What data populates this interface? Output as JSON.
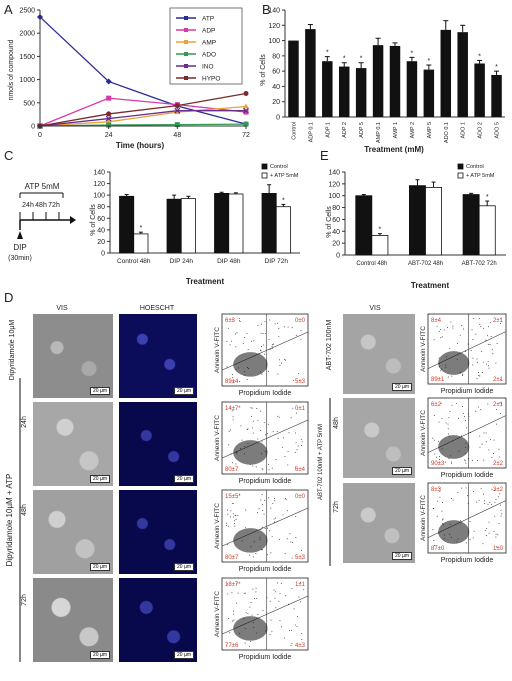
{
  "figure": {
    "panel_letters": [
      "A",
      "B",
      "C",
      "D",
      "E"
    ]
  },
  "chart_data": [
    {
      "id": "A",
      "type": "line",
      "xlabel": "Time (hours)",
      "ylabel": "nmols of compound",
      "x": [
        0,
        24,
        48,
        72
      ],
      "xlim": [
        0,
        72
      ],
      "ylim": [
        0,
        2500
      ],
      "yticks": [
        0,
        500,
        1000,
        1500,
        2000,
        2500
      ],
      "legend_position": "top-right",
      "series": [
        {
          "name": "ATP",
          "color": "#2b2b9a",
          "marker": "diamond",
          "values": [
            2350,
            960,
            430,
            40
          ]
        },
        {
          "name": "ADP",
          "color": "#d63aa9",
          "marker": "square",
          "values": [
            0,
            600,
            460,
            300
          ]
        },
        {
          "name": "AMP",
          "color": "#e8a33a",
          "marker": "triangle",
          "values": [
            0,
            90,
            300,
            420
          ]
        },
        {
          "name": "ADO",
          "color": "#2f9c54",
          "marker": "square",
          "values": [
            0,
            20,
            30,
            40
          ]
        },
        {
          "name": "INO",
          "color": "#6a2b8a",
          "marker": "x",
          "values": [
            0,
            160,
            330,
            330
          ]
        },
        {
          "name": "HYPO",
          "color": "#7a2a2a",
          "marker": "circle",
          "values": [
            0,
            260,
            440,
            700
          ]
        }
      ]
    },
    {
      "id": "B",
      "type": "bar",
      "xlabel": "Treatment (mM)",
      "ylabel": "% of Cells",
      "ylim": [
        0,
        140
      ],
      "yticks": [
        0,
        20,
        40,
        60,
        80,
        100,
        120,
        140
      ],
      "categories": [
        "Control",
        "ADP 0.1",
        "ADP 1",
        "ADP 2",
        "ADP 5",
        "AMP 0.1",
        "AMP 1",
        "AMP 2",
        "AMP 5",
        "ADO 0.1",
        "ADO 1",
        "ADO 2",
        "ADO 5"
      ],
      "values": [
        100,
        115,
        73,
        66,
        64,
        94,
        93,
        73,
        62,
        114,
        111,
        70,
        55
      ],
      "errors": [
        0,
        6,
        6,
        5,
        7,
        9,
        4,
        5,
        6,
        12,
        9,
        4,
        5
      ],
      "significant": [
        false,
        false,
        true,
        true,
        true,
        false,
        false,
        true,
        true,
        false,
        false,
        true,
        true
      ]
    },
    {
      "id": "C",
      "type": "bar",
      "xlabel": "Treatment",
      "ylabel": "% of Cells",
      "ylim": [
        0,
        140
      ],
      "yticks": [
        0,
        20,
        40,
        60,
        80,
        100,
        120,
        140
      ],
      "legend_position": "top-right",
      "categories": [
        "Control 48h",
        "DIP 24h",
        "DIP 48h",
        "DIP 72h"
      ],
      "series": [
        {
          "name": "Control",
          "values": [
            98,
            93,
            103,
            103
          ],
          "errors": [
            3,
            7,
            2,
            15
          ]
        },
        {
          "name": "+ ATP 5mM",
          "values": [
            33,
            94,
            102,
            80
          ],
          "errors": [
            3,
            4,
            2,
            4
          ]
        }
      ],
      "significant": [
        true,
        false,
        false,
        true
      ]
    },
    {
      "id": "E",
      "type": "bar",
      "xlabel": "Treatment",
      "ylabel": "% of Cells",
      "ylim": [
        0,
        140
      ],
      "yticks": [
        0,
        20,
        40,
        60,
        80,
        100,
        120,
        140
      ],
      "legend_position": "top-right",
      "categories": [
        "Control 48h",
        "ABT-702 48h",
        "ABT-702 72h"
      ],
      "series": [
        {
          "name": "Control",
          "values": [
            100,
            117,
            102
          ],
          "errors": [
            2,
            10,
            2
          ]
        },
        {
          "name": "+ ATP 5mM",
          "values": [
            33,
            114,
            83
          ],
          "errors": [
            3,
            9,
            8
          ]
        }
      ],
      "significant": [
        true,
        false,
        true
      ]
    }
  ],
  "schematic": {
    "dose_label": "ATP 5mM",
    "timepoints": [
      "24h",
      "48h",
      "72h"
    ],
    "drug_label": "DIP",
    "drug_time": "(30min)"
  },
  "panel_d": {
    "col_vis": "VIS",
    "col_hoescht": "HOESCHT",
    "col_vis_right": "VIS",
    "scale_bar": "20 µm",
    "top_label": "Dipyridamole 10µM",
    "group_label": "Dipyridamole 10µM + ATP",
    "right_top_label": "ABT-702 100nM",
    "right_group_label": "ABT-702 100nM + ATP 5mM",
    "flow_xlabel": "Propidium Iodide",
    "flow_ylabel": "Annexin V-FITC",
    "rows": [
      {
        "time": "",
        "q": [
          "6±3",
          "0±0",
          "89±4",
          "5±3"
        ]
      },
      {
        "time": "24h",
        "q": [
          "14±7*",
          "0±1",
          "80±7",
          "6±4"
        ]
      },
      {
        "time": "48h",
        "q": [
          "15±5*",
          "0±0",
          "80±7",
          "5±3"
        ]
      },
      {
        "time": "72h",
        "q": [
          "18±7*",
          "1±1",
          "77±6",
          "4±3"
        ]
      }
    ],
    "right_rows": [
      {
        "time": "",
        "q": [
          "8±4",
          "2±1",
          "89±1",
          "2±1"
        ]
      },
      {
        "time": "48h",
        "q": [
          "6±2",
          "2±1",
          "90±3",
          "2±2"
        ]
      },
      {
        "time": "72h",
        "q": [
          "8±3",
          "3±2",
          "87±0",
          "1±0"
        ]
      }
    ]
  }
}
